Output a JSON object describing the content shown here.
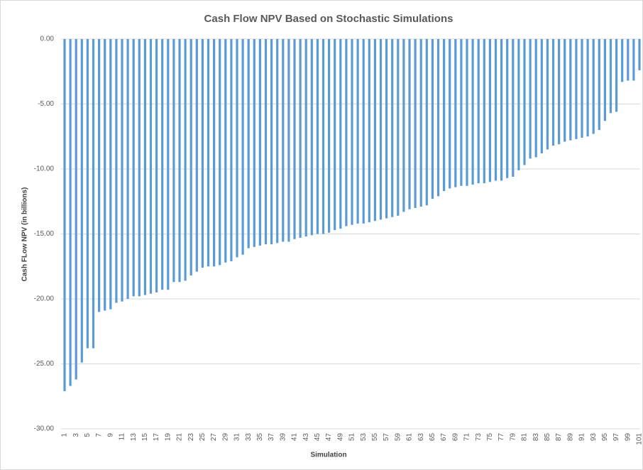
{
  "chart_data": {
    "type": "bar",
    "title": "Cash Flow NPV Based on Stochastic Simulations",
    "x_label": "Simulation",
    "y_label": "Cash FLow NPV (in billions)",
    "color": "#5b9bd5",
    "grid": true,
    "ylim": [
      -30,
      0
    ],
    "yticks": [
      {
        "value": 0,
        "label": "0.00"
      },
      {
        "value": -5,
        "label": "-5.00"
      },
      {
        "value": -10,
        "label": "-10.00"
      },
      {
        "value": -15,
        "label": "-15.00"
      },
      {
        "value": -20,
        "label": "-20.00"
      },
      {
        "value": -25,
        "label": "-25.00"
      },
      {
        "value": -30,
        "label": "-30.00"
      }
    ],
    "categories": [
      1,
      null,
      3,
      null,
      5,
      null,
      7,
      null,
      9,
      null,
      11,
      null,
      13,
      null,
      15,
      null,
      17,
      null,
      19,
      null,
      21,
      null,
      23,
      null,
      25,
      null,
      27,
      null,
      29,
      null,
      31,
      null,
      33,
      null,
      35,
      null,
      37,
      null,
      39,
      null,
      41,
      null,
      43,
      null,
      45,
      null,
      47,
      null,
      49,
      null,
      51,
      null,
      53,
      null,
      55,
      null,
      57,
      null,
      59,
      null,
      61,
      null,
      63,
      null,
      65,
      null,
      67,
      null,
      69,
      null,
      71,
      null,
      73,
      null,
      75,
      null,
      77,
      null,
      79,
      null,
      81,
      null,
      83,
      null,
      85,
      null,
      87,
      null,
      89,
      null,
      91,
      null,
      93,
      null,
      95,
      null,
      97,
      null,
      99,
      null,
      101
    ],
    "values": [
      -27.1,
      -26.7,
      -26.2,
      -24.9,
      -23.8,
      -23.8,
      -21.0,
      -20.9,
      -20.8,
      -20.3,
      -20.2,
      -20.0,
      -19.8,
      -19.8,
      -19.7,
      -19.6,
      -19.5,
      -19.3,
      -19.3,
      -18.7,
      -18.7,
      -18.6,
      -18.2,
      -17.9,
      -17.6,
      -17.5,
      -17.5,
      -17.4,
      -17.2,
      -17.1,
      -16.8,
      -16.6,
      -16.1,
      -16.0,
      -15.9,
      -15.8,
      -15.8,
      -15.7,
      -15.6,
      -15.6,
      -15.4,
      -15.3,
      -15.2,
      -15.1,
      -15.0,
      -15.0,
      -14.9,
      -14.7,
      -14.6,
      -14.4,
      -14.3,
      -14.2,
      -14.2,
      -14.1,
      -14.0,
      -13.9,
      -13.8,
      -13.7,
      -13.6,
      -13.3,
      -13.1,
      -13.0,
      -12.9,
      -12.8,
      -12.3,
      -12.1,
      -11.7,
      -11.5,
      -11.4,
      -11.3,
      -11.3,
      -11.2,
      -11.1,
      -11.1,
      -11.0,
      -10.9,
      -10.9,
      -10.7,
      -10.6,
      -10.1,
      -9.7,
      -9.2,
      -9.1,
      -8.8,
      -8.5,
      -8.2,
      -8.1,
      -7.9,
      -7.8,
      -7.7,
      -7.6,
      -7.5,
      -7.3,
      -7.0,
      -6.3,
      -5.7,
      -5.6,
      -3.3,
      -3.2,
      -3.2,
      -2.4
    ]
  }
}
